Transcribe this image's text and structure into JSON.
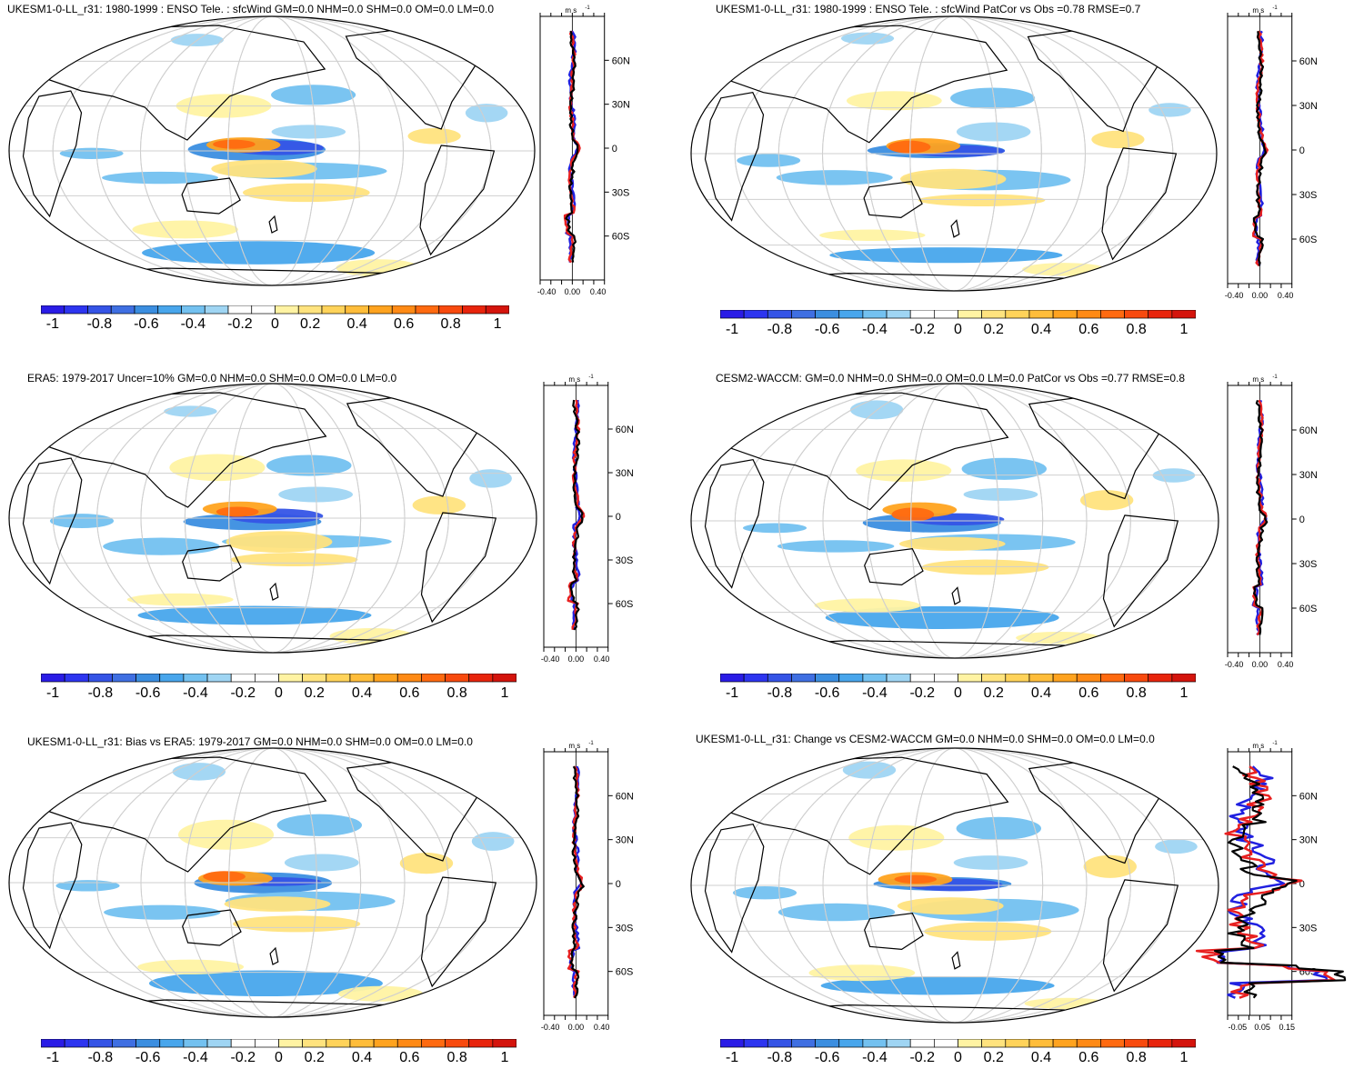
{
  "colorbar": {
    "labels": [
      "-1",
      "-0.8",
      "-0.6",
      "-0.4",
      "-0.2",
      "0",
      "0.2",
      "0.4",
      "0.6",
      "0.8",
      "1"
    ],
    "colors": [
      "#2a1ce6",
      "#2d35f0",
      "#3554e6",
      "#3f6fe2",
      "#3b8ee0",
      "#48a6ec",
      "#73c1f0",
      "#9fd5f3",
      "#ffffff",
      "#ffffff",
      "#fff3a3",
      "#ffe37e",
      "#ffd35a",
      "#ffbd3a",
      "#ffa31f",
      "#ff8a15",
      "#ff6a10",
      "#f84a0e",
      "#e8240c",
      "#d4140c"
    ]
  },
  "zonal_units": "m s",
  "zonal_units_sup": "-1",
  "lat_labels": [
    "60N",
    "30N",
    "0",
    "30S",
    "60S"
  ],
  "panels": [
    {
      "title": "UKESM1-0-LL_r31: 1980-1999 : ENSO Tele. : sfcWind GM=0.0 NHM=0.0 SHM=0.0 OM=0.0 LM=0.0",
      "x_ticks": [
        "-0.40",
        "0.00",
        "0.40"
      ],
      "x_range": [
        -0.5,
        0.5
      ],
      "seed": 1
    },
    {
      "title": "UKESM1-0-LL_r31: 1980-1999 : ENSO Tele. : sfcWind PatCor vs Obs =0.78 RMSE=0.7",
      "x_ticks": [
        "-0.40",
        "0.00",
        "0.40"
      ],
      "x_range": [
        -0.5,
        0.5
      ],
      "seed": 2
    },
    {
      "title": "ERA5: 1979-2017 Uncer=10% GM=0.0 NHM=0.0 SHM=0.0 OM=0.0 LM=0.0",
      "x_ticks": [
        "-0.40",
        "0.00",
        "0.40"
      ],
      "x_range": [
        -0.5,
        0.5
      ],
      "seed": 3
    },
    {
      "title": "CESM2-WACCM: GM=0.0 NHM=0.0 SHM=0.0 OM=0.0 LM=0.0 PatCor vs Obs =0.77 RMSE=0.8",
      "x_ticks": [
        "-0.40",
        "0.00",
        "0.40"
      ],
      "x_range": [
        -0.5,
        0.5
      ],
      "seed": 4
    },
    {
      "title": "UKESM1-0-LL_r31: Bias vs ERA5: 1979-2017 GM=0.0 NHM=0.0 SHM=0.0 OM=0.0 LM=0.0",
      "x_ticks": [
        "-0.40",
        "0.00",
        "0.40"
      ],
      "x_range": [
        -0.5,
        0.5
      ],
      "seed": 5
    },
    {
      "title": "UKESM1-0-LL_r31: Change vs CESM2-WACCM GM=0.0 NHM=0.0 SHM=0.0 OM=0.0 LM=0.0",
      "x_ticks": [
        "-0.05",
        "0.05",
        "0.15"
      ],
      "x_range": [
        -0.09,
        0.17
      ],
      "seed": 6
    }
  ]
}
